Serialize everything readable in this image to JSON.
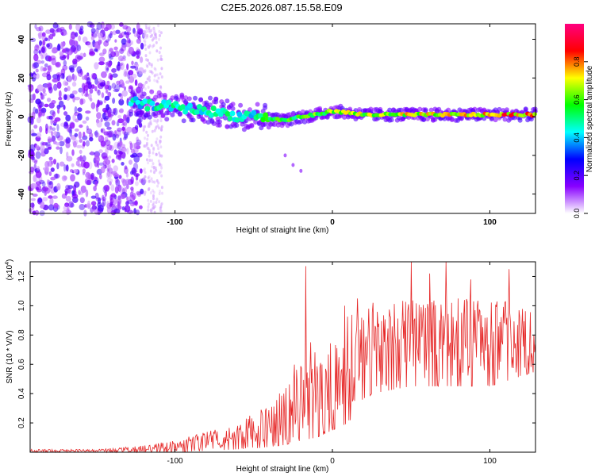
{
  "title": "C2E5.2026.087.15.58.E09",
  "chart_data": [
    {
      "type": "heatmap",
      "xlabel": "Height of straight line (km)",
      "ylabel": "Frequency (Hz)",
      "xlim": [
        -192,
        129
      ],
      "ylim": [
        -50,
        48
      ],
      "x_ticks": [
        -100,
        0,
        100
      ],
      "y_ticks": [
        -40,
        -20,
        0,
        20,
        40
      ],
      "colorbar": {
        "label": "Normalized spectral amplitude",
        "range": [
          0,
          1
        ],
        "ticks": [
          "0.0",
          "0.2",
          "0.4",
          "0.6",
          "0.8"
        ],
        "tick_values": [
          0,
          0.2,
          0.4,
          0.6,
          0.8
        ],
        "colors": [
          "#ffffff",
          "#8800ff",
          "#0000ff",
          "#00ffff",
          "#00ff00",
          "#ffff00",
          "#ff0000",
          "#ff0080"
        ]
      },
      "noise_region_end_km": -120,
      "ridge": [
        {
          "x": -128,
          "y": 8,
          "a": 0.5
        },
        {
          "x": -120,
          "y": 6,
          "a": 0.45
        },
        {
          "x": -110,
          "y": 6,
          "a": 0.5
        },
        {
          "x": -100,
          "y": 5,
          "a": 0.5
        },
        {
          "x": -90,
          "y": 4,
          "a": 0.5
        },
        {
          "x": -80,
          "y": 3,
          "a": 0.5
        },
        {
          "x": -70,
          "y": 2,
          "a": 0.5
        },
        {
          "x": -60,
          "y": 0,
          "a": 0.45
        },
        {
          "x": -50,
          "y": 1,
          "a": 0.5
        },
        {
          "x": -40,
          "y": -1,
          "a": 0.55
        },
        {
          "x": -30,
          "y": -2,
          "a": 0.6
        },
        {
          "x": -20,
          "y": 0,
          "a": 0.6
        },
        {
          "x": -10,
          "y": 1,
          "a": 0.65
        },
        {
          "x": 0,
          "y": 3,
          "a": 0.65
        },
        {
          "x": 20,
          "y": 1,
          "a": 0.7
        },
        {
          "x": 40,
          "y": 1,
          "a": 0.7
        },
        {
          "x": 60,
          "y": 1,
          "a": 0.75
        },
        {
          "x": 80,
          "y": 1,
          "a": 0.75
        },
        {
          "x": 100,
          "y": 1,
          "a": 0.8
        },
        {
          "x": 129,
          "y": 1,
          "a": 0.85
        }
      ],
      "outliers": [
        {
          "x": -30,
          "y": -20
        },
        {
          "x": -25,
          "y": -25
        },
        {
          "x": -20,
          "y": -28
        }
      ]
    },
    {
      "type": "line",
      "xlabel": "Height of straight line (km)",
      "ylabel": "SNR (10 * V/V)",
      "multiplier": "(x10",
      "multiplier_exp": "4",
      "multiplier_close": ")",
      "xlim": [
        -192,
        129
      ],
      "ylim": [
        0,
        1.3
      ],
      "x_ticks": [
        -100,
        0,
        100
      ],
      "y_ticks": [
        0.2,
        0.4,
        0.6,
        0.8,
        1.0,
        1.2
      ],
      "y_tick_labels": [
        "0.2",
        "0.4",
        "0.6",
        "0.8",
        "1.0",
        "1.2"
      ],
      "color": "#e62828",
      "envelope": [
        {
          "x": -192,
          "lo": 0.0,
          "hi": 0.02
        },
        {
          "x": -150,
          "lo": 0.0,
          "hi": 0.02
        },
        {
          "x": -125,
          "lo": 0.0,
          "hi": 0.04
        },
        {
          "x": -100,
          "lo": 0.0,
          "hi": 0.08
        },
        {
          "x": -80,
          "lo": 0.01,
          "hi": 0.14
        },
        {
          "x": -60,
          "lo": 0.02,
          "hi": 0.2
        },
        {
          "x": -45,
          "lo": 0.03,
          "hi": 0.3
        },
        {
          "x": -30,
          "lo": 0.05,
          "hi": 0.5
        },
        {
          "x": -20,
          "lo": 0.08,
          "hi": 0.7
        },
        {
          "x": -10,
          "lo": 0.1,
          "hi": 0.72
        },
        {
          "x": 0,
          "lo": 0.15,
          "hi": 0.75
        },
        {
          "x": 10,
          "lo": 0.2,
          "hi": 0.95
        },
        {
          "x": 25,
          "lo": 0.4,
          "hi": 1.0
        },
        {
          "x": 50,
          "lo": 0.45,
          "hi": 1.05
        },
        {
          "x": 75,
          "lo": 0.45,
          "hi": 1.05
        },
        {
          "x": 100,
          "lo": 0.45,
          "hi": 1.05
        },
        {
          "x": 129,
          "lo": 0.55,
          "hi": 1.0
        }
      ],
      "spikes": [
        {
          "x": -17,
          "y": 1.27
        },
        {
          "x": -14,
          "y": 0.75
        },
        {
          "x": 8,
          "y": 1.0
        },
        {
          "x": 16,
          "y": 1.05
        },
        {
          "x": 26,
          "y": 1.02
        },
        {
          "x": 50,
          "y": 1.3
        },
        {
          "x": 62,
          "y": 1.22
        },
        {
          "x": 72,
          "y": 1.3
        },
        {
          "x": 88,
          "y": 1.18
        },
        {
          "x": 112,
          "y": 1.25
        }
      ]
    }
  ]
}
